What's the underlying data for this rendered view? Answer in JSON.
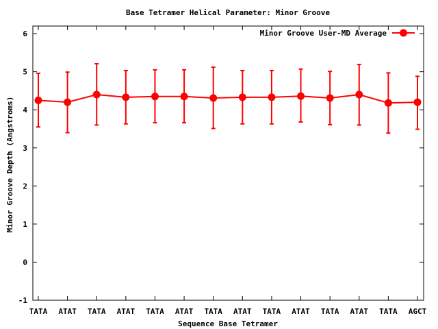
{
  "chart_data": {
    "type": "line",
    "title": "Base Tetramer Helical Parameter: Minor Groove",
    "xlabel": "Sequence Base Tetramer",
    "ylabel": "Minor Groove Depth (Angstroms)",
    "ylim": [
      -1,
      6.2
    ],
    "yticks": [
      -1,
      0,
      1,
      2,
      3,
      4,
      5,
      6
    ],
    "categories": [
      "TATA",
      "ATAT",
      "TATA",
      "ATAT",
      "TATA",
      "ATAT",
      "TATA",
      "ATAT",
      "TATA",
      "ATAT",
      "TATA",
      "ATAT",
      "TATA",
      "AGCT"
    ],
    "legend_position": "top-right",
    "grid": false,
    "series": [
      {
        "name": "Minor Groove User-MD Average",
        "color": "#ff0000",
        "values": [
          4.25,
          4.2,
          4.4,
          4.33,
          4.35,
          4.35,
          4.31,
          4.33,
          4.33,
          4.36,
          4.31,
          4.4,
          4.18,
          4.2
        ],
        "error_low": [
          3.55,
          3.4,
          3.6,
          3.63,
          3.66,
          3.66,
          3.51,
          3.63,
          3.63,
          3.68,
          3.61,
          3.6,
          3.39,
          3.49
        ],
        "error_high": [
          4.96,
          4.99,
          5.21,
          5.03,
          5.05,
          5.05,
          5.12,
          5.03,
          5.03,
          5.07,
          5.01,
          5.19,
          4.97,
          4.88
        ]
      }
    ]
  }
}
